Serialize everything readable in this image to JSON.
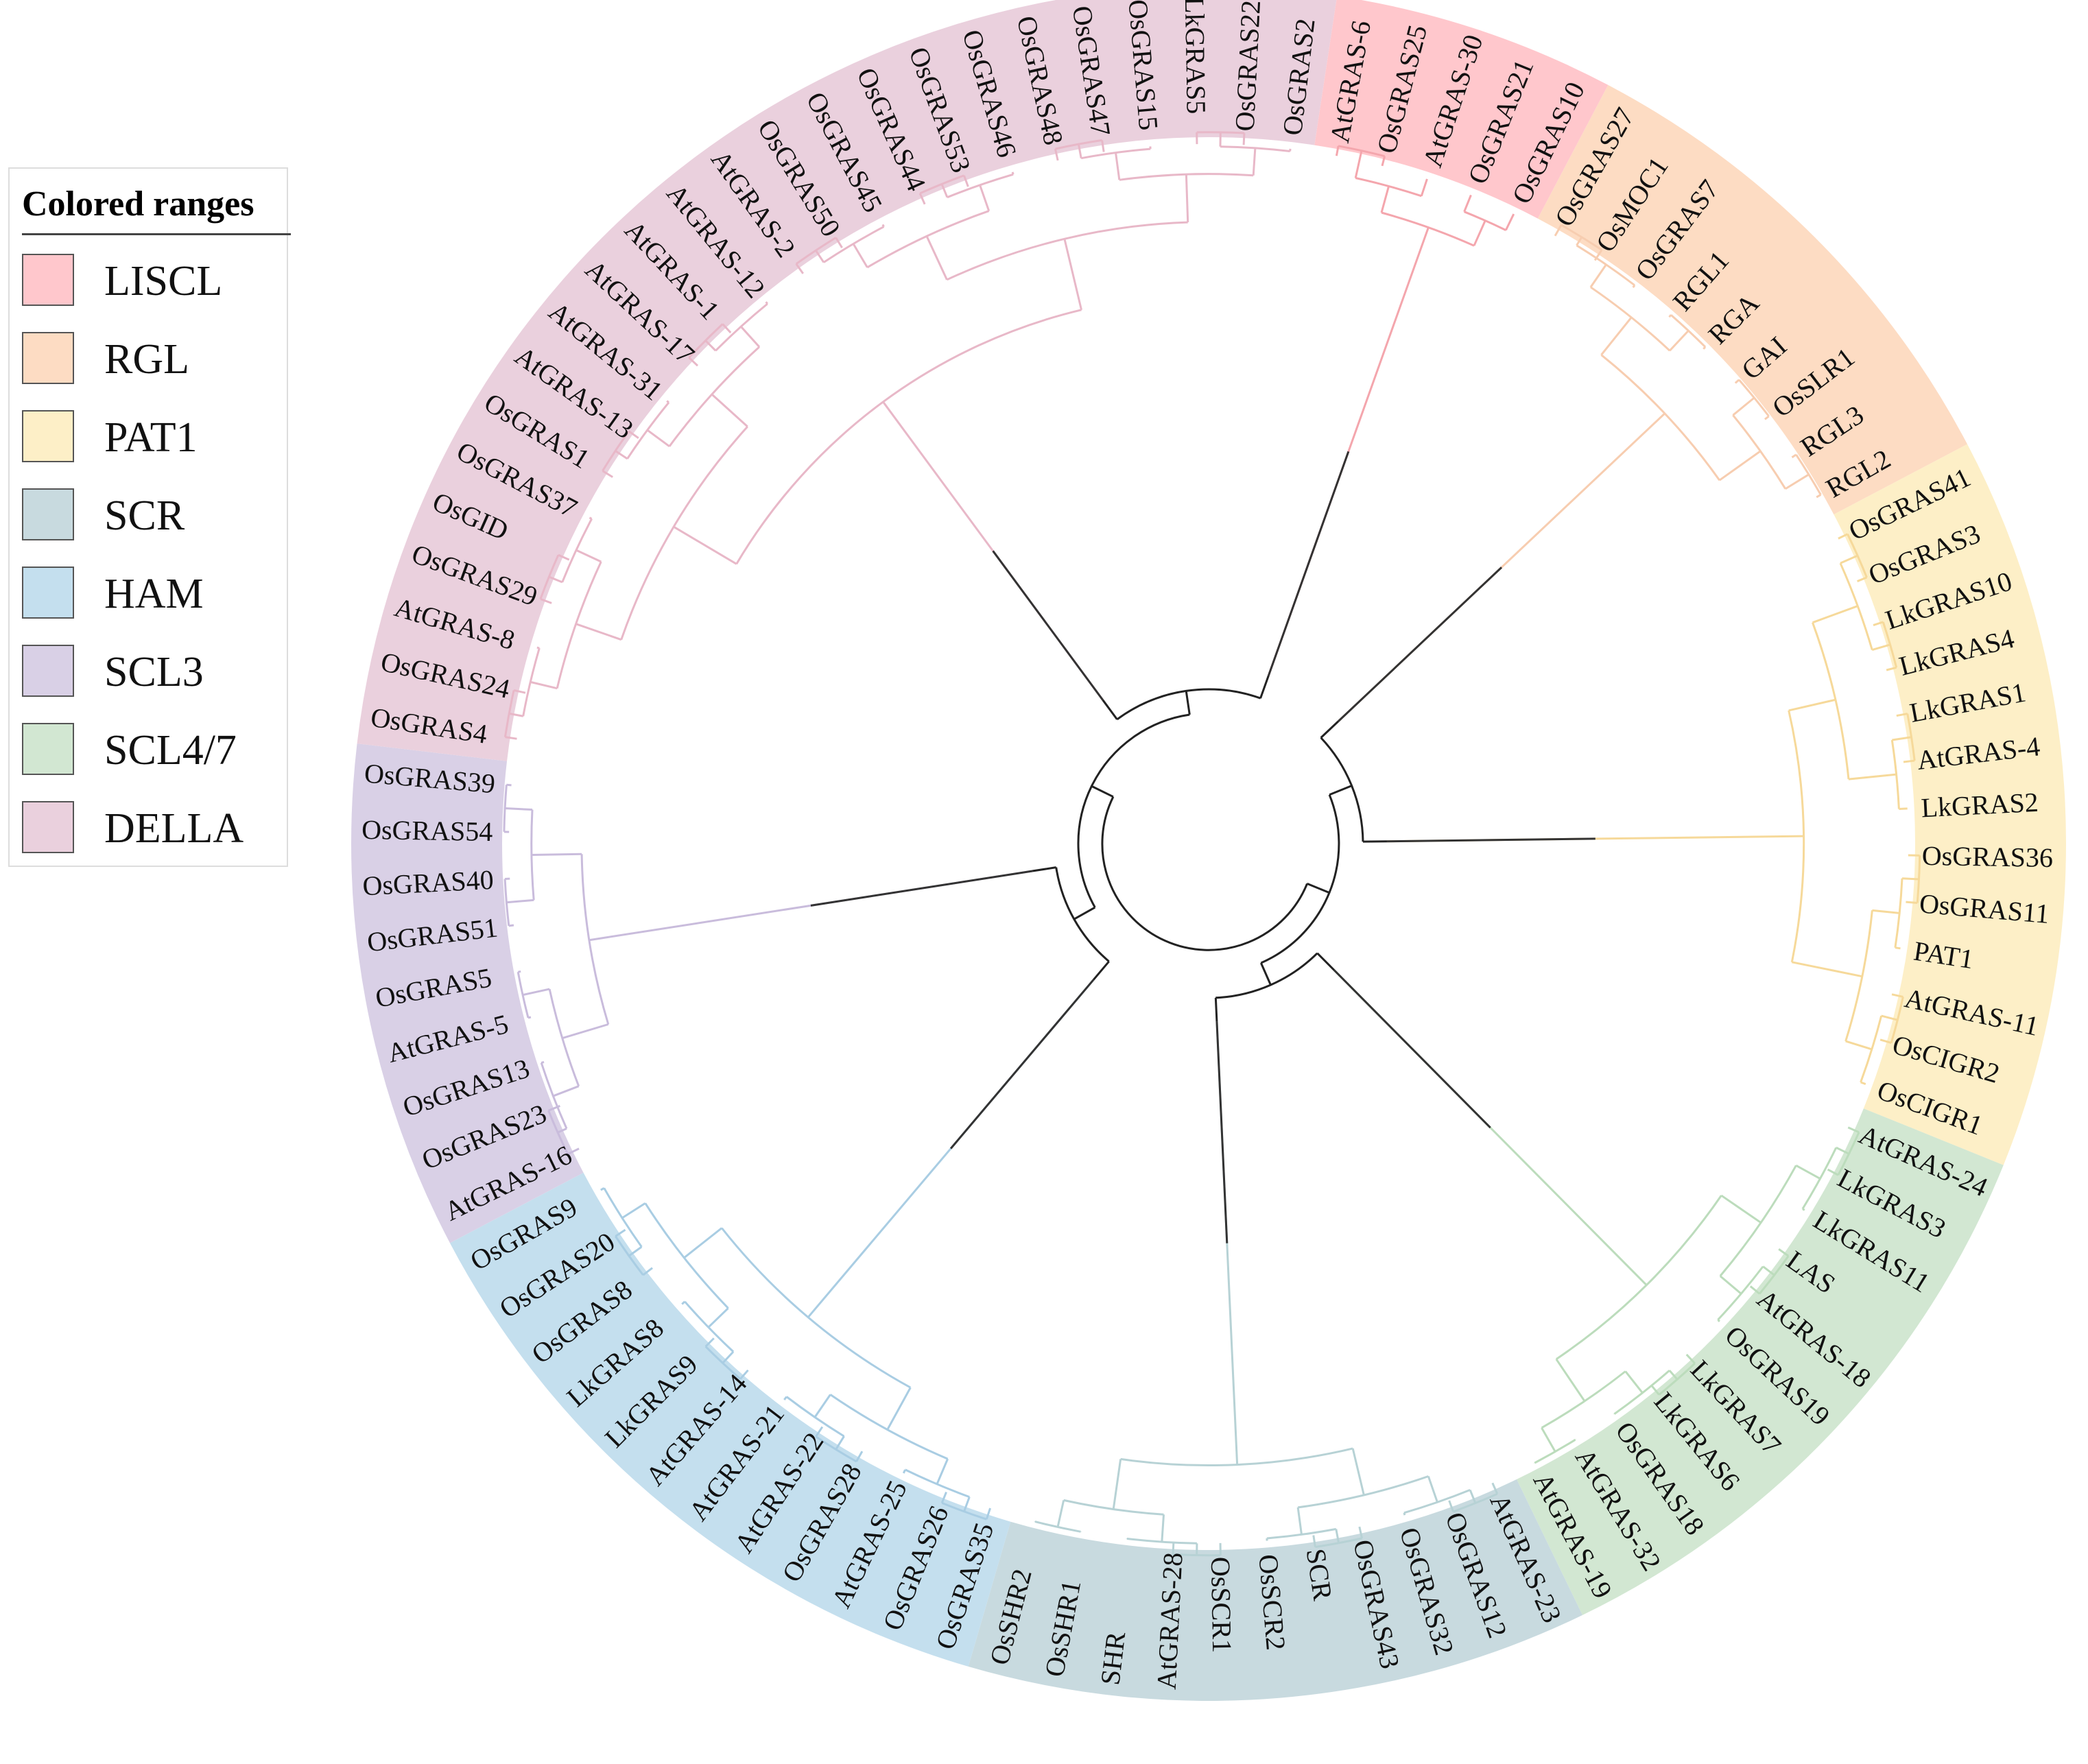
{
  "legend": {
    "title": "Colored ranges",
    "items": [
      {
        "label": "LISCL",
        "color": "#ffc7cc"
      },
      {
        "label": "RGL",
        "color": "#fddcc3"
      },
      {
        "label": "PAT1",
        "color": "#fdefc7"
      },
      {
        "label": "SCR",
        "color": "#c8dadf"
      },
      {
        "label": "HAM",
        "color": "#c4dfee"
      },
      {
        "label": "SCL3",
        "color": "#d9d0e6"
      },
      {
        "label": "SCL4/7",
        "color": "#d2e7d2"
      },
      {
        "label": "DELLA",
        "color": "#ead0dd"
      }
    ]
  },
  "tree": {
    "layout": "circular",
    "center_angle_deg": -45,
    "clades": [
      {
        "name": "RGL",
        "color": "#fddcc3",
        "branch_color": "#f7cdb0",
        "leaves": [
          "OsGRAS27",
          "OsMOC1",
          "OsGRAS7",
          "RGL1",
          "RGA",
          "GAI",
          "OsSLR1",
          "RGL3",
          "RGL2"
        ]
      },
      {
        "name": "PAT1",
        "color": "#fdefc7",
        "branch_color": "#f6d99a",
        "leaves": [
          "OsGRAS41",
          "OsGRAS3",
          "LkGRAS10",
          "LkGRAS4",
          "LkGRAS1",
          "AtGRAS-4",
          "LkGRAS2",
          "OsGRAS36",
          "OsGRAS11",
          "PAT1",
          "AtGRAS-11",
          "OsCIGR2",
          "OsCIGR1"
        ]
      },
      {
        "name": "SCL4/7",
        "color": "#d2e7d2",
        "branch_color": "#bcdcbc",
        "leaves": [
          "AtGRAS-24",
          "LkGRAS3",
          "LkGRAS11",
          "LAS",
          "AtGRAS-18",
          "OsGRAS19",
          "LkGRAS7",
          "LkGRAS6",
          "OsGRAS18",
          "AtGRAS-32",
          "AtGRAS-19"
        ]
      },
      {
        "name": "SCR",
        "color": "#c8dadf",
        "branch_color": "#b7d2d5",
        "leaves": [
          "AtGRAS-23",
          "OsGRAS12",
          "OsGRAS32",
          "OsGRAS43",
          "SCR",
          "OsSCR2",
          "OsSCR1",
          "AtGRAS-28",
          "SHR",
          "OsSHR1",
          "OsSHR2"
        ]
      },
      {
        "name": "HAM",
        "color": "#c4dfee",
        "branch_color": "#a9cde3",
        "leaves": [
          "OsGRAS35",
          "OsGRAS26",
          "AtGRAS-25",
          "OsGRAS28",
          "AtGRAS-22",
          "AtGRAS-21",
          "AtGRAS-14",
          "LkGRAS9",
          "LkGRAS8",
          "OsGRAS8",
          "OsGRAS20",
          "OsGRAS9"
        ]
      },
      {
        "name": "SCL3",
        "color": "#d9d0e6",
        "branch_color": "#c9bcdc",
        "leaves": [
          "AtGRAS-16",
          "OsGRAS23",
          "OsGRAS13",
          "AtGRAS-5",
          "OsGRAS5",
          "OsGRAS51",
          "OsGRAS40",
          "OsGRAS54",
          "OsGRAS39"
        ]
      },
      {
        "name": "DELLA",
        "color": "#ead0dd",
        "branch_color": "#e8b8c8",
        "leaves": [
          "OsGRAS4",
          "OsGRAS24",
          "AtGRAS-8",
          "OsGRAS29",
          "OsGID",
          "OsGRAS37",
          "OsGRAS1",
          "AtGRAS-13",
          "AtGRAS-31",
          "AtGRAS-17",
          "AtGRAS-1",
          "AtGRAS-12",
          "AtGRAS-2",
          "OsGRAS50",
          "OsGRAS45",
          "OsGRAS44",
          "OsGRAS53",
          "OsGRAS46",
          "OsGRAS48",
          "OsGRAS47",
          "OsGRAS15",
          "LkGRAS5",
          "OsGRAS22",
          "OsGRAS2"
        ]
      },
      {
        "name": "LISCL",
        "color": "#ffc7cc",
        "branch_color": "#f4a6ad",
        "leaves": [
          "AtGRAS-6",
          "OsGRAS25",
          "AtGRAS-30",
          "OsGRAS21",
          "OsGRAS10"
        ]
      }
    ]
  }
}
